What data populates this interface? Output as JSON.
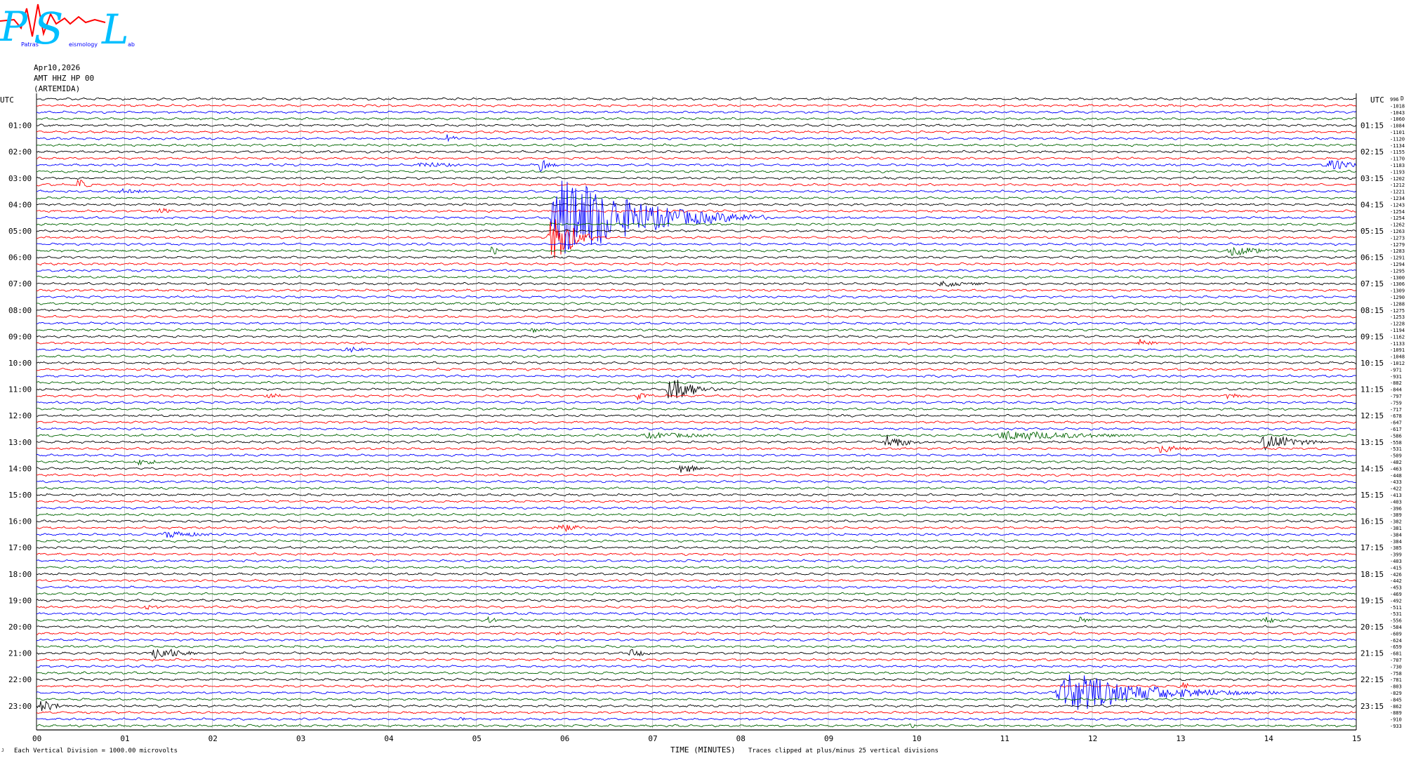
{
  "logo": {
    "letters": [
      "P",
      "S",
      "L"
    ],
    "small_text": [
      "Patras",
      "eismology",
      "ab"
    ]
  },
  "header": {
    "date": "Apr10,2026",
    "channel": "AMT HHZ HP 00",
    "station": "(ARTEMIDA)"
  },
  "footer": {
    "scale_note": "Each Vertical Division = 1000.00 microvolts",
    "xlabel": "TIME (MINUTES)",
    "clip_note": "Traces clipped at plus/minus 25 vertical divisions",
    "tiny_mark": "J"
  },
  "chart_data": {
    "type": "line",
    "title": "",
    "xlabel": "TIME (MINUTES)",
    "ylabel": "UTC",
    "right_ylabel": "UTC",
    "xlim": [
      0,
      15
    ],
    "x_ticks": [
      "00",
      "01",
      "02",
      "03",
      "04",
      "05",
      "06",
      "07",
      "08",
      "09",
      "10",
      "11",
      "12",
      "13",
      "14",
      "15"
    ],
    "left_time_labels": [
      "01:00",
      "02:00",
      "03:00",
      "04:00",
      "05:00",
      "06:00",
      "07:00",
      "08:00",
      "09:00",
      "10:00",
      "11:00",
      "12:00",
      "13:00",
      "14:00",
      "15:00",
      "16:00",
      "17:00",
      "18:00",
      "19:00",
      "20:00",
      "21:00",
      "22:00",
      "23:00"
    ],
    "right_time_labels": [
      "01:15",
      "02:15",
      "03:15",
      "04:15",
      "05:15",
      "06:15",
      "07:15",
      "08:15",
      "09:15",
      "10:15",
      "11:15",
      "12:15",
      "13:15",
      "14:15",
      "15:15",
      "16:15",
      "17:15",
      "18:15",
      "19:15",
      "20:15",
      "21:15",
      "22:15",
      "23:15"
    ],
    "trace_count": 96,
    "trace_colors": [
      "#000000",
      "#ff0000",
      "#0000ff",
      "#006400"
    ],
    "dc_offset_header": "D",
    "dc_offsets": [
      "996",
      "-1018",
      "-1043",
      "-1060",
      "-1084",
      "-1101",
      "-1120",
      "-1134",
      "-1155",
      "-1170",
      "-1183",
      "-1193",
      "-1202",
      "-1212",
      "-1221",
      "-1234",
      "-1243",
      "-1254",
      "-1254",
      "-1262",
      "-1263",
      "-1273",
      "-1279",
      "-1283",
      "-1291",
      "-1294",
      "-1295",
      "-1300",
      "-1306",
      "-1309",
      "-1290",
      "-1288",
      "-1275",
      "-1253",
      "-1228",
      "-1194",
      "-1162",
      "-1133",
      "-1091",
      "-1048",
      "-1012",
      "-971",
      "-931",
      "-882",
      "-844",
      "-797",
      "-759",
      "-717",
      "-678",
      "-647",
      "-617",
      "-586",
      "-558",
      "-531",
      "-509",
      "-482",
      "-463",
      "-448",
      "-433",
      "-422",
      "-413",
      "-403",
      "-396",
      "-389",
      "-382",
      "-381",
      "-384",
      "-384",
      "-385",
      "-399",
      "-403",
      "-415",
      "-426",
      "-442",
      "-453",
      "-469",
      "-492",
      "-511",
      "-531",
      "-556",
      "-584",
      "-609",
      "-624",
      "-659",
      "-681",
      "-707",
      "-730",
      "-758",
      "-781",
      "-803",
      "-829",
      "-845",
      "-862",
      "-889",
      "-910",
      "-933"
    ],
    "events": [
      {
        "trace": 6,
        "minute": 4.65,
        "amp": 0.9,
        "len": 0.25
      },
      {
        "trace": 10,
        "minute": 4.3,
        "amp": 0.5,
        "len": 1.2
      },
      {
        "trace": 10,
        "minute": 5.7,
        "amp": 1.3,
        "len": 0.3
      },
      {
        "trace": 10,
        "minute": 14.65,
        "amp": 1.3,
        "len": 0.6
      },
      {
        "trace": 13,
        "minute": 0.45,
        "amp": 1.0,
        "len": 0.3
      },
      {
        "trace": 14,
        "minute": 0.9,
        "amp": 0.4,
        "len": 1.0
      },
      {
        "trace": 17,
        "minute": 1.35,
        "amp": 0.7,
        "len": 0.4
      },
      {
        "trace": 18,
        "minute": 5.8,
        "amp": 7.0,
        "len": 2.5
      },
      {
        "trace": 21,
        "minute": 5.8,
        "amp": 6.0,
        "len": 0.6
      },
      {
        "trace": 23,
        "minute": 13.5,
        "amp": 0.8,
        "len": 1.1
      },
      {
        "trace": 23,
        "minute": 5.15,
        "amp": 0.9,
        "len": 0.3
      },
      {
        "trace": 28,
        "minute": 10.2,
        "amp": 0.5,
        "len": 1.3
      },
      {
        "trace": 35,
        "minute": 5.6,
        "amp": 0.4,
        "len": 0.6
      },
      {
        "trace": 37,
        "minute": 12.5,
        "amp": 0.8,
        "len": 0.4
      },
      {
        "trace": 38,
        "minute": 3.5,
        "amp": 0.5,
        "len": 0.6
      },
      {
        "trace": 44,
        "minute": 7.15,
        "amp": 2.6,
        "len": 0.7
      },
      {
        "trace": 45,
        "minute": 2.6,
        "amp": 0.6,
        "len": 0.4
      },
      {
        "trace": 45,
        "minute": 6.8,
        "amp": 0.6,
        "len": 0.4
      },
      {
        "trace": 45,
        "minute": 13.5,
        "amp": 0.5,
        "len": 0.5
      },
      {
        "trace": 51,
        "minute": 6.8,
        "amp": 0.5,
        "len": 2.2
      },
      {
        "trace": 51,
        "minute": 10.8,
        "amp": 0.8,
        "len": 3.0
      },
      {
        "trace": 52,
        "minute": 9.6,
        "amp": 1.1,
        "len": 0.8
      },
      {
        "trace": 52,
        "minute": 13.9,
        "amp": 1.5,
        "len": 1.0
      },
      {
        "trace": 53,
        "minute": 12.7,
        "amp": 0.7,
        "len": 0.9
      },
      {
        "trace": 55,
        "minute": 1.1,
        "amp": 0.5,
        "len": 0.8
      },
      {
        "trace": 56,
        "minute": 7.3,
        "amp": 1.1,
        "len": 0.4
      },
      {
        "trace": 65,
        "minute": 5.85,
        "amp": 0.9,
        "len": 0.7
      },
      {
        "trace": 66,
        "minute": 1.4,
        "amp": 0.6,
        "len": 1.2
      },
      {
        "trace": 77,
        "minute": 1.2,
        "amp": 0.4,
        "len": 0.7
      },
      {
        "trace": 79,
        "minute": 5.1,
        "amp": 0.5,
        "len": 0.4
      },
      {
        "trace": 79,
        "minute": 11.8,
        "amp": 0.6,
        "len": 0.4
      },
      {
        "trace": 79,
        "minute": 13.9,
        "amp": 0.6,
        "len": 0.6
      },
      {
        "trace": 81,
        "minute": 5.9,
        "amp": 0.5,
        "len": 0.2
      },
      {
        "trace": 84,
        "minute": 1.3,
        "amp": 1.2,
        "len": 0.8
      },
      {
        "trace": 84,
        "minute": 6.7,
        "amp": 0.6,
        "len": 0.7
      },
      {
        "trace": 89,
        "minute": 13.0,
        "amp": 0.6,
        "len": 0.4
      },
      {
        "trace": 90,
        "minute": 11.55,
        "amp": 3.2,
        "len": 2.6
      },
      {
        "trace": 92,
        "minute": 0.0,
        "amp": 1.0,
        "len": 0.6
      },
      {
        "trace": 94,
        "minute": 4.8,
        "amp": 0.5,
        "len": 0.2
      },
      {
        "trace": 95,
        "minute": 9.9,
        "amp": 0.5,
        "len": 0.3
      }
    ]
  }
}
